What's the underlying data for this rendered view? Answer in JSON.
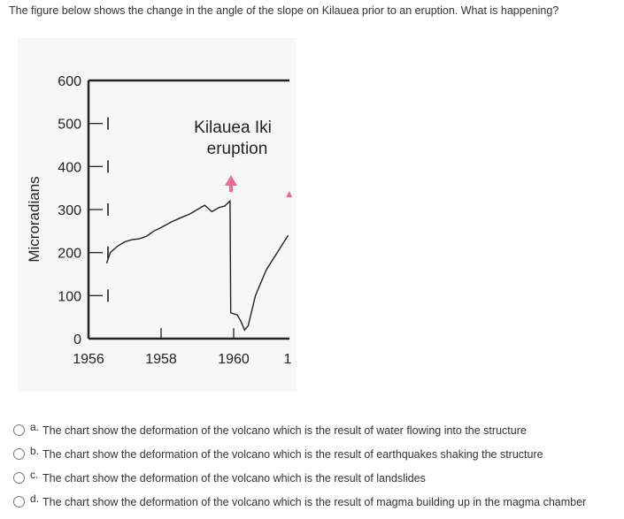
{
  "question": {
    "text": "The figure below shows the change in the angle of the slope on Kilauea prior to an eruption. What is happening?"
  },
  "chart_data": {
    "type": "line",
    "title": "",
    "ylabel": "Microradians",
    "xlabel": "",
    "ylim": [
      0,
      600
    ],
    "xlim": [
      1956,
      1961.7
    ],
    "y_ticks": [
      "600",
      "500",
      "400",
      "300",
      "200",
      "100",
      "0"
    ],
    "x_ticks": [
      "1956",
      "1958",
      "1960",
      "1"
    ],
    "annotation": [
      "Kilauea Iki",
      "eruption"
    ],
    "series": [
      {
        "x": [
          1956.5,
          1956.6,
          1956.8,
          1957.0,
          1957.2,
          1957.4,
          1957.6,
          1957.8,
          1958.0,
          1958.3,
          1958.6,
          1958.8,
          1959.0,
          1959.2,
          1959.4,
          1959.6,
          1959.75,
          1959.9,
          1959.92,
          1960.1,
          1960.2,
          1960.3,
          1960.4,
          1960.6,
          1960.9,
          1961.2,
          1961.5
        ],
        "values": [
          175,
          200,
          215,
          225,
          230,
          232,
          238,
          250,
          258,
          272,
          283,
          290,
          300,
          310,
          295,
          305,
          308,
          320,
          60,
          55,
          40,
          20,
          30,
          100,
          160,
          200,
          240
        ]
      }
    ],
    "colors": {
      "line": "#222222",
      "arrow": "#f06b93"
    }
  },
  "answers": [
    {
      "letter": "a.",
      "text": "The chart show the deformation of the volcano which is the result of water flowing into the structure"
    },
    {
      "letter": "b.",
      "text": "The chart show the deformation of the volcano which is the result of earthquakes shaking the structure"
    },
    {
      "letter": "c.",
      "text": "The chart show the deformation of the volcano which is the result of landslides"
    },
    {
      "letter": "d.",
      "text": "The chart show the deformation of the volcano which is the result of magma building up in the magma chamber"
    }
  ]
}
